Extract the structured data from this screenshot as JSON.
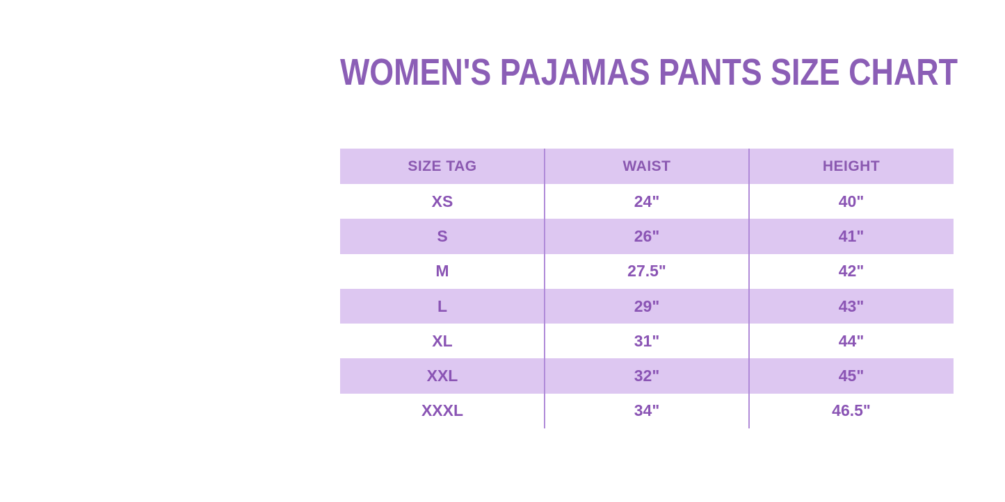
{
  "page": {
    "background": "#ffffff"
  },
  "title": {
    "text": "WOMEN'S PAJAMAS PANTS SIZE CHART",
    "color": "#8b5eb6"
  },
  "table": {
    "columns": [
      "SIZE TAG",
      "WAIST",
      "HEIGHT"
    ],
    "rows": [
      [
        "XS",
        "24\"",
        "40\""
      ],
      [
        "S",
        "26\"",
        "41\""
      ],
      [
        "M",
        "27.5\"",
        "42\""
      ],
      [
        "L",
        "29\"",
        "43\""
      ],
      [
        "XL",
        "31\"",
        "44\""
      ],
      [
        "XXL",
        "32\"",
        "45\""
      ],
      [
        "XXXL",
        "34\"",
        "46.5\""
      ]
    ],
    "colors": {
      "band_background": "#ddc7f1",
      "divider": "#b08ad8",
      "header_text": "#8a58b0",
      "cell_text": "#8a54b4"
    }
  },
  "chart_data": {
    "type": "table",
    "title": "WOMEN'S PAJAMAS PANTS SIZE CHART",
    "columns": [
      "SIZE TAG",
      "WAIST",
      "HEIGHT"
    ],
    "rows": [
      [
        "XS",
        "24\"",
        "40\""
      ],
      [
        "S",
        "26\"",
        "41\""
      ],
      [
        "M",
        "27.5\"",
        "42\""
      ],
      [
        "L",
        "29\"",
        "43\""
      ],
      [
        "XL",
        "31\"",
        "44\""
      ],
      [
        "XXL",
        "32\"",
        "45\""
      ],
      [
        "XXXL",
        "34\"",
        "46.5\""
      ]
    ],
    "size_tags": [
      "XS",
      "S",
      "M",
      "L",
      "XL",
      "XXL",
      "XXXL"
    ],
    "waist_inches": [
      24,
      26,
      27.5,
      29,
      31,
      32,
      34
    ],
    "height_inches": [
      40,
      41,
      42,
      43,
      44,
      45,
      46.5
    ],
    "layout_hints": {
      "row_striping": "alternating lavender starting with header",
      "column_dividers": true,
      "horizontal_gridlines": false
    }
  }
}
